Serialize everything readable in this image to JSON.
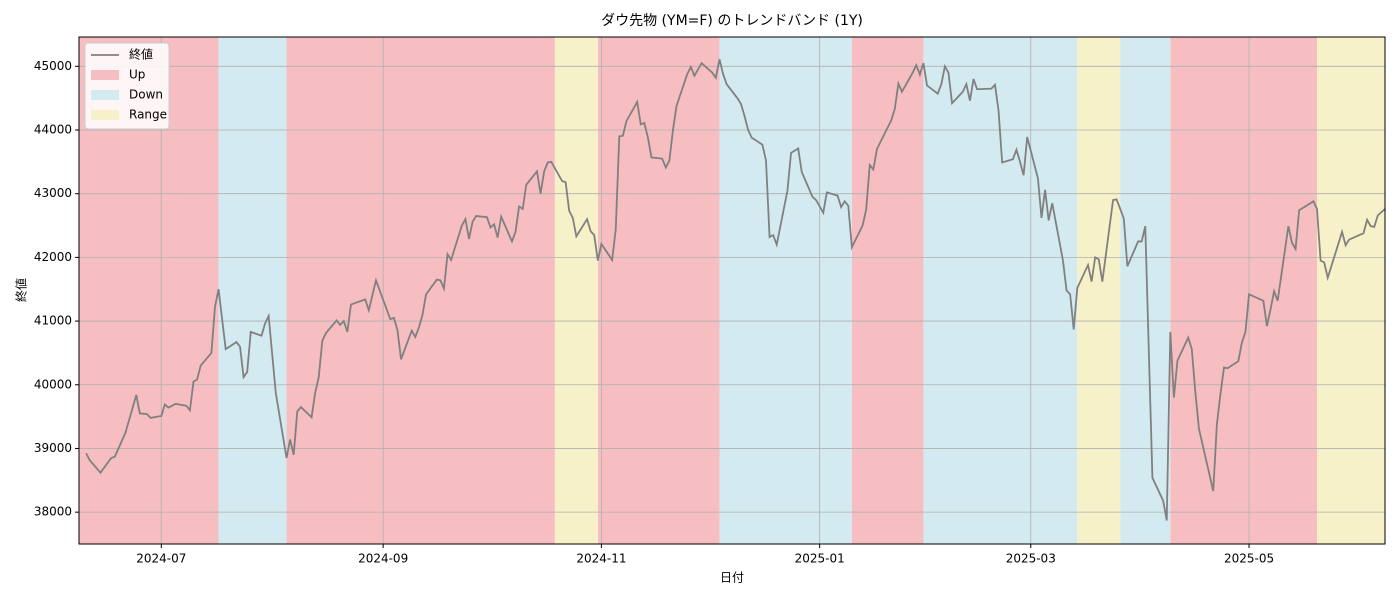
{
  "chart_data": {
    "type": "line",
    "title": "ダウ先物 (YM=F) のトレンドバンド (1Y)",
    "xlabel": "日付",
    "ylabel": "終値",
    "grid": true,
    "legend": "upper left",
    "xlim": [
      "2024-06-08",
      "2025-06-08"
    ],
    "ylim": [
      37500,
      45460
    ],
    "yticks": [
      38000,
      39000,
      40000,
      41000,
      42000,
      43000,
      44000,
      45000
    ],
    "xticks": [
      {
        "value": "2024-07-01",
        "label": "2024-07"
      },
      {
        "value": "2024-09-01",
        "label": "2024-09"
      },
      {
        "value": "2024-11-01",
        "label": "2024-11"
      },
      {
        "value": "2025-01-01",
        "label": "2025-01"
      },
      {
        "value": "2025-03-01",
        "label": "2025-03"
      },
      {
        "value": "2025-05-01",
        "label": "2025-05"
      }
    ],
    "bands": [
      {
        "name": "Up",
        "color": "#f6bec0",
        "spans": [
          [
            "2024-06-08",
            "2024-07-17"
          ],
          [
            "2024-08-05",
            "2024-10-19"
          ],
          [
            "2024-10-31",
            "2024-12-04"
          ],
          [
            "2025-01-10",
            "2025-01-30"
          ],
          [
            "2025-04-09",
            "2025-05-20"
          ]
        ]
      },
      {
        "name": "Down",
        "color": "#d3eaf0",
        "spans": [
          [
            "2024-07-17",
            "2024-08-05"
          ],
          [
            "2024-12-04",
            "2025-01-10"
          ],
          [
            "2025-01-30",
            "2025-03-14"
          ],
          [
            "2025-03-26",
            "2025-04-09"
          ]
        ]
      },
      {
        "name": "Range",
        "color": "#f6f1c8",
        "spans": [
          [
            "2024-10-19",
            "2024-10-31"
          ],
          [
            "2025-03-14",
            "2025-03-26"
          ],
          [
            "2025-05-20",
            "2025-06-08"
          ]
        ]
      }
    ],
    "x": [
      "2024-06-10",
      "2024-06-11",
      "2024-06-12",
      "2024-06-14",
      "2024-06-17",
      "2024-06-18",
      "2024-06-21",
      "2024-06-24",
      "2024-06-25",
      "2024-06-27",
      "2024-06-28",
      "2024-07-01",
      "2024-07-02",
      "2024-07-03",
      "2024-07-05",
      "2024-07-08",
      "2024-07-09",
      "2024-07-10",
      "2024-07-11",
      "2024-07-12",
      "2024-07-15",
      "2024-07-16",
      "2024-07-17",
      "2024-07-19",
      "2024-07-22",
      "2024-07-23",
      "2024-07-24",
      "2024-07-25",
      "2024-07-26",
      "2024-07-29",
      "2024-07-30",
      "2024-07-31",
      "2024-08-02",
      "2024-08-05",
      "2024-08-06",
      "2024-08-07",
      "2024-08-08",
      "2024-08-09",
      "2024-08-12",
      "2024-08-13",
      "2024-08-14",
      "2024-08-15",
      "2024-08-16",
      "2024-08-19",
      "2024-08-20",
      "2024-08-21",
      "2024-08-22",
      "2024-08-23",
      "2024-08-27",
      "2024-08-28",
      "2024-08-30",
      "2024-09-03",
      "2024-09-04",
      "2024-09-05",
      "2024-09-06",
      "2024-09-09",
      "2024-09-10",
      "2024-09-11",
      "2024-09-12",
      "2024-09-13",
      "2024-09-16",
      "2024-09-17",
      "2024-09-18",
      "2024-09-19",
      "2024-09-20",
      "2024-09-23",
      "2024-09-24",
      "2024-09-25",
      "2024-09-26",
      "2024-09-27",
      "2024-09-30",
      "2024-10-01",
      "2024-10-02",
      "2024-10-03",
      "2024-10-04",
      "2024-10-07",
      "2024-10-08",
      "2024-10-09",
      "2024-10-10",
      "2024-10-11",
      "2024-10-14",
      "2024-10-15",
      "2024-10-16",
      "2024-10-17",
      "2024-10-18",
      "2024-10-21",
      "2024-10-22",
      "2024-10-23",
      "2024-10-24",
      "2024-10-25",
      "2024-10-28",
      "2024-10-29",
      "2024-10-30",
      "2024-10-31",
      "2024-11-01",
      "2024-11-04",
      "2024-11-05",
      "2024-11-06",
      "2024-11-07",
      "2024-11-08",
      "2024-11-11",
      "2024-11-12",
      "2024-11-13",
      "2024-11-14",
      "2024-11-15",
      "2024-11-18",
      "2024-11-19",
      "2024-11-20",
      "2024-11-21",
      "2024-11-22",
      "2024-11-25",
      "2024-11-26",
      "2024-11-27",
      "2024-11-29",
      "2024-12-02",
      "2024-12-03",
      "2024-12-04",
      "2024-12-05",
      "2024-12-06",
      "2024-12-09",
      "2024-12-10",
      "2024-12-11",
      "2024-12-12",
      "2024-12-13",
      "2024-12-16",
      "2024-12-17",
      "2024-12-18",
      "2024-12-19",
      "2024-12-20",
      "2024-12-23",
      "2024-12-24",
      "2024-12-26",
      "2024-12-27",
      "2024-12-30",
      "2024-12-31",
      "2025-01-02",
      "2025-01-03",
      "2025-01-06",
      "2025-01-07",
      "2025-01-08",
      "2025-01-09",
      "2025-01-10",
      "2025-01-13",
      "2025-01-14",
      "2025-01-15",
      "2025-01-16",
      "2025-01-17",
      "2025-01-21",
      "2025-01-22",
      "2025-01-23",
      "2025-01-24",
      "2025-01-27",
      "2025-01-28",
      "2025-01-29",
      "2025-01-30",
      "2025-01-31",
      "2025-02-03",
      "2025-02-04",
      "2025-02-05",
      "2025-02-06",
      "2025-02-07",
      "2025-02-10",
      "2025-02-11",
      "2025-02-12",
      "2025-02-13",
      "2025-02-14",
      "2025-02-18",
      "2025-02-19",
      "2025-02-20",
      "2025-02-21",
      "2025-02-24",
      "2025-02-25",
      "2025-02-26",
      "2025-02-27",
      "2025-02-28",
      "2025-03-03",
      "2025-03-04",
      "2025-03-05",
      "2025-03-06",
      "2025-03-07",
      "2025-03-10",
      "2025-03-11",
      "2025-03-12",
      "2025-03-13",
      "2025-03-14",
      "2025-03-17",
      "2025-03-18",
      "2025-03-19",
      "2025-03-20",
      "2025-03-21",
      "2025-03-24",
      "2025-03-25",
      "2025-03-26",
      "2025-03-27",
      "2025-03-28",
      "2025-03-31",
      "2025-04-01",
      "2025-04-02",
      "2025-04-04",
      "2025-04-07",
      "2025-04-08",
      "2025-04-09",
      "2025-04-10",
      "2025-04-11",
      "2025-04-14",
      "2025-04-15",
      "2025-04-16",
      "2025-04-17",
      "2025-04-21",
      "2025-04-22",
      "2025-04-23",
      "2025-04-24",
      "2025-04-25",
      "2025-04-28",
      "2025-04-29",
      "2025-04-30",
      "2025-05-01",
      "2025-05-05",
      "2025-05-06",
      "2025-05-07",
      "2025-05-08",
      "2025-05-09",
      "2025-05-12",
      "2025-05-13",
      "2025-05-14",
      "2025-05-15",
      "2025-05-19",
      "2025-05-20",
      "2025-05-21",
      "2025-05-22",
      "2025-05-23",
      "2025-05-27",
      "2025-05-28",
      "2025-05-29",
      "2025-06-02",
      "2025-06-03",
      "2025-06-04",
      "2025-06-05",
      "2025-06-06",
      "2025-06-08"
    ],
    "series": [
      {
        "name": "終値",
        "color": "#808080",
        "values": [
          38925,
          38815,
          38750,
          38620,
          38850,
          38870,
          39250,
          39840,
          39550,
          39540,
          39480,
          39510,
          39690,
          39640,
          39700,
          39670,
          39600,
          40050,
          40080,
          40300,
          40500,
          41220,
          41500,
          40560,
          40670,
          40600,
          40120,
          40200,
          40830,
          40770,
          40960,
          41080,
          39870,
          38850,
          39140,
          38900,
          39580,
          39650,
          39490,
          39870,
          40120,
          40690,
          40810,
          41010,
          40940,
          41000,
          40830,
          41260,
          41340,
          41170,
          41640,
          41030,
          41050,
          40860,
          40400,
          40850,
          40750,
          40900,
          41100,
          41420,
          41650,
          41640,
          41510,
          42050,
          41960,
          42500,
          42600,
          42290,
          42560,
          42650,
          42630,
          42470,
          42520,
          42310,
          42640,
          42250,
          42400,
          42800,
          42760,
          43140,
          43350,
          43000,
          43350,
          43490,
          43500,
          43200,
          43180,
          42730,
          42620,
          42330,
          42600,
          42410,
          42350,
          41950,
          42210,
          41960,
          42430,
          43900,
          43910,
          44140,
          44440,
          44090,
          44110,
          43880,
          43570,
          43550,
          43410,
          43520,
          44000,
          44380,
          44880,
          44990,
          44850,
          45050,
          44900,
          44820,
          45110,
          44880,
          44720,
          44500,
          44410,
          44220,
          44000,
          43880,
          43770,
          43520,
          42320,
          42350,
          42200,
          43050,
          43640,
          43710,
          43340,
          42950,
          42900,
          42700,
          43020,
          42970,
          42790,
          42880,
          42810,
          42160,
          42500,
          42750,
          43450,
          43380,
          43700,
          44150,
          44330,
          44730,
          44600,
          44900,
          45020,
          44870,
          45050,
          44700,
          44570,
          44720,
          45000,
          44900,
          44420,
          44600,
          44720,
          44460,
          44800,
          44640,
          44650,
          44710,
          44300,
          43490,
          43540,
          43690,
          43500,
          43290,
          43890,
          43240,
          42620,
          43060,
          42580,
          42850,
          41950,
          41480,
          41420,
          40870,
          41520,
          41880,
          41620,
          42000,
          41970,
          41620,
          42900,
          42910,
          42760,
          42610,
          41860,
          42250,
          42250,
          42490,
          38540,
          38180,
          37870,
          40830,
          39800,
          40380,
          40740,
          40560,
          39880,
          39310,
          38330,
          39370,
          39850,
          40270,
          40260,
          40370,
          40660,
          40830,
          41420,
          41320,
          40920,
          41180,
          41470,
          41320,
          42490,
          42230,
          42130,
          42740,
          42880,
          42760,
          41950,
          41920,
          41680,
          42400,
          42190,
          42280,
          42380,
          42590,
          42490,
          42480,
          42660,
          42760
        ]
      }
    ]
  }
}
